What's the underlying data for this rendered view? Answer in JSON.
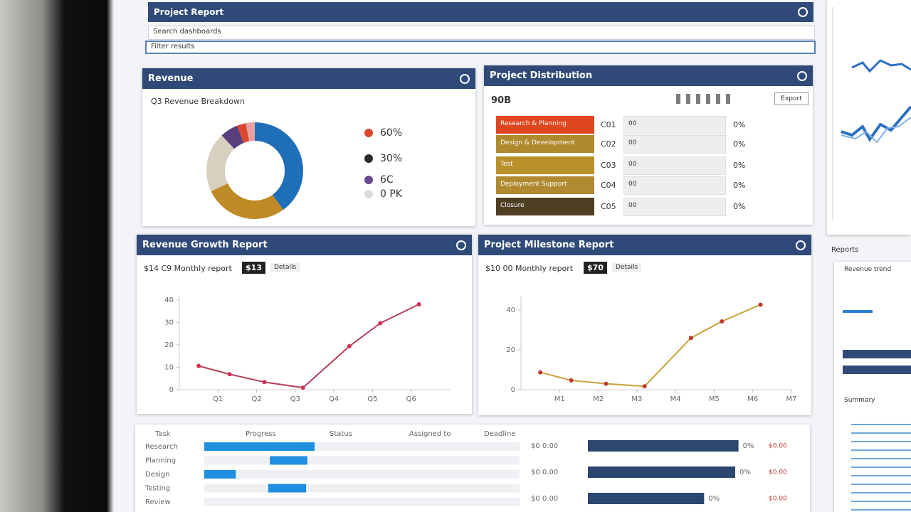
{
  "header": {
    "title": "Project Report",
    "search_1": "Search dashboards",
    "search_2": "Filter results"
  },
  "donut_panel": {
    "title": "Revenue",
    "subtitle": "Q3 Revenue Breakdown",
    "chart": {
      "type": "pie",
      "values": [
        40,
        28,
        20,
        6,
        3,
        3
      ],
      "colors": [
        "#1f6fb8",
        "#c08a26",
        "#d8cfbf",
        "#5a3f7e",
        "#d9482b",
        "#e9a0a0"
      ]
    },
    "legend": [
      {
        "label": "60%",
        "color": "#d9482b"
      },
      {
        "label": "30%",
        "color": "#2a2a2a"
      },
      {
        "label": "6C",
        "color": "#6a4a8e"
      },
      {
        "label": "0 PK",
        "color": "#dddddd"
      }
    ]
  },
  "bar_panel": {
    "title": "Project Distribution",
    "subtitle": "90B",
    "button": "Export",
    "rows": [
      {
        "label": "Research & Planning",
        "color": "#e0461f",
        "code": "C01",
        "note": "00",
        "pct": "0%"
      },
      {
        "label": "Design & Development",
        "color": "#b0892c",
        "code": "C02",
        "note": "00",
        "pct": "0%"
      },
      {
        "label": "Test",
        "color": "#b9902a",
        "code": "C03",
        "note": "00",
        "pct": "0%"
      },
      {
        "label": "Deployment Support",
        "color": "#b08930",
        "code": "C04",
        "note": "00",
        "pct": "0%"
      },
      {
        "label": "Closure",
        "color": "#4e3e22",
        "code": "C05",
        "note": "00",
        "pct": "0%"
      }
    ]
  },
  "line_panels": [
    {
      "title": "Revenue Growth Report",
      "subtitle": "$14 C9 Monthly report",
      "badge": "$13",
      "tag": "Details",
      "chart": {
        "type": "line",
        "color": "#b8405a",
        "x": [
          0.5,
          1.3,
          2.2,
          3.2,
          4.4,
          5.2,
          6.2
        ],
        "values": [
          10.6,
          6.9,
          3.4,
          0.9,
          19.4,
          29.7,
          38.1
        ],
        "xlim": [
          0,
          7
        ],
        "xticks": [
          {
            "value": 1,
            "label": "Q1"
          },
          {
            "value": 2,
            "label": "Q2"
          },
          {
            "value": 3,
            "label": "Q3"
          },
          {
            "value": 4,
            "label": "Q4"
          },
          {
            "value": 5,
            "label": "Q5"
          },
          {
            "value": 6,
            "label": "Q6"
          }
        ],
        "ylim": [
          0,
          40
        ],
        "yticks": [
          0,
          10,
          20,
          30,
          40
        ]
      }
    },
    {
      "title": "Project Milestone Report",
      "subtitle": "$10 00 Monthly report",
      "badge": "$70",
      "tag": "Details",
      "chart": {
        "type": "line",
        "color": "#c9a23a",
        "x": [
          0.5,
          1.3,
          2.2,
          3.2,
          4.4,
          5.2,
          6.2
        ],
        "values": [
          8.7,
          4.7,
          3.0,
          1.7,
          26,
          34.3,
          42.7
        ],
        "xlim": [
          0,
          7
        ],
        "xticks": [
          {
            "value": 1,
            "label": "M1"
          },
          {
            "value": 2,
            "label": "M2"
          },
          {
            "value": 3,
            "label": "M3"
          },
          {
            "value": 4,
            "label": "M4"
          },
          {
            "value": 5,
            "label": "M5"
          },
          {
            "value": 6,
            "label": "M6"
          },
          {
            "value": 7,
            "label": "M7"
          }
        ],
        "ylim": [
          0,
          45
        ],
        "yticks": [
          0,
          20,
          40
        ]
      }
    }
  ],
  "table": {
    "headers": [
      "Task",
      "Progress",
      "Status",
      "Assigned to",
      "Deadline"
    ],
    "rows": [
      {
        "label": "Research",
        "range": [
          0,
          35
        ]
      },
      {
        "label": "Planning",
        "range": [
          20.8,
          32.7
        ]
      },
      {
        "label": "Design",
        "range": [
          0,
          10
        ]
      },
      {
        "label": "Testing",
        "range": [
          20.3,
          32.3
        ]
      },
      {
        "label": "Review",
        "range": [
          0,
          0
        ]
      }
    ],
    "bars": [
      {
        "label": "$0 0.00",
        "value": 92,
        "pct": "0%",
        "note": "$0.00"
      },
      {
        "label": "$0 0.00",
        "value": 90,
        "pct": "0%",
        "note": "$0.00"
      },
      {
        "label": "$0 0.00",
        "value": 71,
        "pct": "0%",
        "note": "$0.00"
      }
    ],
    "bar_color": "#2b466f"
  },
  "side": {
    "title": "Reports",
    "item_1": "Revenue trend",
    "item_2": "Summary"
  }
}
